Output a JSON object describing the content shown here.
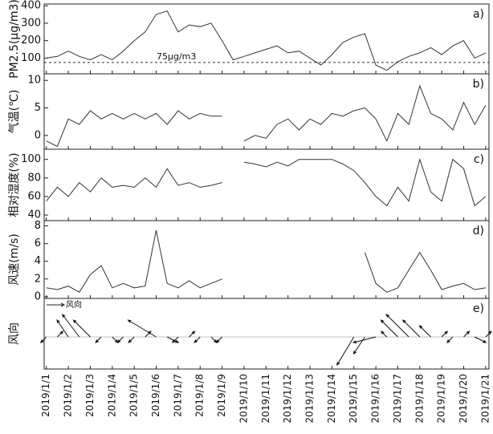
{
  "chart_data": [
    {
      "type": "line",
      "y_label": "PM2.5(μg/m3)",
      "panel_label": "a)",
      "color": "#333333",
      "x": [
        1,
        1.5,
        2,
        2.5,
        3,
        3.5,
        4,
        4.5,
        5,
        5.5,
        6,
        6.5,
        7,
        7.5,
        8,
        8.5,
        9,
        9.5,
        10,
        10.5,
        11,
        11.5,
        12,
        12.5,
        13,
        13.5,
        14,
        14.5,
        15,
        15.5,
        16,
        16.5,
        17,
        17.5,
        18,
        18.5,
        19,
        19.5,
        20,
        20.5,
        21
      ],
      "values": [
        100,
        110,
        140,
        110,
        90,
        120,
        90,
        140,
        200,
        250,
        350,
        370,
        250,
        290,
        280,
        300,
        200,
        90,
        110,
        130,
        150,
        170,
        130,
        140,
        100,
        60,
        120,
        190,
        220,
        240,
        60,
        30,
        80,
        110,
        130,
        160,
        120,
        170,
        200,
        100,
        130
      ],
      "hline": {
        "value": 75,
        "label": "75μg/m3"
      },
      "xlim": [
        0.9,
        21.15
      ],
      "ylim": [
        10,
        410
      ],
      "yticks": [
        100,
        200,
        300,
        400
      ]
    },
    {
      "type": "line",
      "y_label": "气温(℃)",
      "panel_label": "b)",
      "color": "#333333",
      "x": [
        1,
        1.5,
        2,
        2.5,
        3,
        3.5,
        4,
        4.5,
        5,
        5.5,
        6,
        6.5,
        7,
        7.5,
        8,
        8.5,
        9,
        9.5,
        10,
        10.5,
        11,
        11.5,
        12,
        12.5,
        13,
        13.5,
        14,
        14.5,
        15,
        15.5,
        16,
        16.5,
        17,
        17.5,
        18,
        18.5,
        19,
        19.5,
        20,
        20.5,
        21
      ],
      "values": [
        -1,
        -2,
        3,
        2,
        4.5,
        3,
        4,
        3,
        4,
        3,
        4,
        2,
        4.5,
        3,
        4,
        3.5,
        3.5,
        null,
        -1,
        0,
        -0.5,
        2,
        3,
        1,
        3,
        2,
        4,
        3.5,
        4.5,
        5,
        3,
        -1,
        4,
        2,
        9,
        4,
        3,
        1,
        6,
        2,
        5.5
      ],
      "xlim": [
        0.9,
        21.15
      ],
      "ylim": [
        -2.5,
        11.2
      ],
      "yticks": [
        0,
        5,
        10
      ]
    },
    {
      "type": "line",
      "y_label": "相对湿度(%)",
      "panel_label": "c)",
      "color": "#333333",
      "x": [
        1,
        1.5,
        2,
        2.5,
        3,
        3.5,
        4,
        4.5,
        5,
        5.5,
        6,
        6.5,
        7,
        7.5,
        8,
        8.5,
        9,
        9.5,
        10,
        10.5,
        11,
        11.5,
        12,
        12.5,
        13,
        13.5,
        14,
        14.5,
        15,
        15.5,
        16,
        16.5,
        17,
        17.5,
        18,
        18.5,
        19,
        19.5,
        20,
        20.5,
        21
      ],
      "values": [
        55,
        70,
        60,
        75,
        65,
        80,
        70,
        72,
        70,
        80,
        70,
        90,
        72,
        75,
        70,
        72,
        75,
        null,
        97,
        95,
        92,
        97,
        93,
        100,
        100,
        100,
        100,
        95,
        88,
        75,
        60,
        50,
        70,
        55,
        100,
        65,
        55,
        100,
        90,
        50,
        60
      ],
      "xlim": [
        0.9,
        21.15
      ],
      "ylim": [
        34,
        111
      ],
      "yticks": [
        40,
        60,
        80,
        100
      ]
    },
    {
      "type": "line",
      "y_label": "风速(m/s)",
      "panel_label": "d)",
      "color": "#333333",
      "x": [
        1,
        1.5,
        2,
        2.5,
        3,
        3.5,
        4,
        4.5,
        5,
        5.5,
        6,
        6.5,
        7,
        7.5,
        8,
        8.5,
        9,
        9.5,
        10,
        10.5,
        11,
        11.5,
        12,
        12.5,
        13,
        13.5,
        14,
        14.5,
        15,
        15.5,
        16,
        16.5,
        17,
        17.5,
        18,
        18.5,
        19,
        19.5,
        20,
        20.5,
        21
      ],
      "values": [
        1,
        0.8,
        1.2,
        0.5,
        2.5,
        3.5,
        1,
        1.5,
        1,
        1.2,
        7.5,
        1.5,
        1,
        1.8,
        1,
        1.5,
        2,
        null,
        null,
        null,
        null,
        null,
        null,
        null,
        null,
        null,
        null,
        null,
        null,
        5,
        1.5,
        0.5,
        1,
        3,
        5,
        3,
        0.8,
        1.2,
        1.5,
        0.8,
        1
      ],
      "xlim": [
        0.9,
        21.15
      ],
      "ylim": [
        -0.2,
        8.6
      ],
      "yticks": [
        0,
        2,
        4,
        6,
        8
      ]
    },
    {
      "type": "vector",
      "y_label": "风向",
      "panel_label": "e)",
      "name": "风向",
      "color": "#111111",
      "x": [
        1,
        1.5,
        2,
        2.5,
        3,
        3.5,
        4,
        4.5,
        5,
        5.5,
        6,
        6.5,
        7,
        7.5,
        8,
        8.5,
        9,
        9.5,
        10,
        10.5,
        11,
        11.5,
        12,
        12.5,
        13,
        13.5,
        14,
        14.5,
        15,
        15.5,
        16,
        16.5,
        17,
        17.5,
        18,
        18.5,
        19,
        19.5,
        20,
        20.5,
        21
      ],
      "u": [
        -1,
        1,
        -2,
        -3,
        -3,
        -1,
        1,
        -1,
        -1,
        1,
        -5,
        2,
        -1,
        1,
        -1,
        1,
        -1,
        null,
        null,
        null,
        null,
        null,
        null,
        null,
        null,
        null,
        null,
        null,
        -3,
        -2,
        -4,
        -1,
        -3,
        -4,
        -3,
        -2,
        1,
        -1,
        1,
        2,
        1
      ],
      "v": [
        -1,
        1,
        3,
        4,
        3,
        -1,
        -1,
        -1,
        -1,
        1,
        3,
        -1,
        -1,
        1,
        -1,
        -1,
        -1,
        null,
        null,
        null,
        null,
        null,
        null,
        null,
        null,
        null,
        null,
        null,
        -5,
        -3,
        -1,
        1,
        3,
        4,
        3,
        2,
        1,
        -1,
        1,
        -1,
        1
      ],
      "xlim": [
        0.9,
        21.15
      ],
      "xticks": [
        {
          "value": 1,
          "label": "2019/1/1"
        },
        {
          "value": 2,
          "label": "2019/1/2"
        },
        {
          "value": 3,
          "label": "2019/1/3"
        },
        {
          "value": 4,
          "label": "2019/1/4"
        },
        {
          "value": 5,
          "label": "2019/1/5"
        },
        {
          "value": 6,
          "label": "2019/1/6"
        },
        {
          "value": 7,
          "label": "2019/1/7"
        },
        {
          "value": 8,
          "label": "2019/1/8"
        },
        {
          "value": 9,
          "label": "2019/1/9"
        },
        {
          "value": 10,
          "label": "2019/1/10"
        },
        {
          "value": 11,
          "label": "2019/1/11"
        },
        {
          "value": 12,
          "label": "2019/1/12"
        },
        {
          "value": 13,
          "label": "2019/1/13"
        },
        {
          "value": 14,
          "label": "2019/1/14"
        },
        {
          "value": 15,
          "label": "2019/1/15"
        },
        {
          "value": 16,
          "label": "2019/1/16"
        },
        {
          "value": 17,
          "label": "2019/1/17"
        },
        {
          "value": 18,
          "label": "2019/1/18"
        },
        {
          "value": 19,
          "label": "2019/1/19"
        },
        {
          "value": 20,
          "label": "2019/1/20"
        },
        {
          "value": 21,
          "label": "2019/1/21"
        }
      ]
    }
  ]
}
